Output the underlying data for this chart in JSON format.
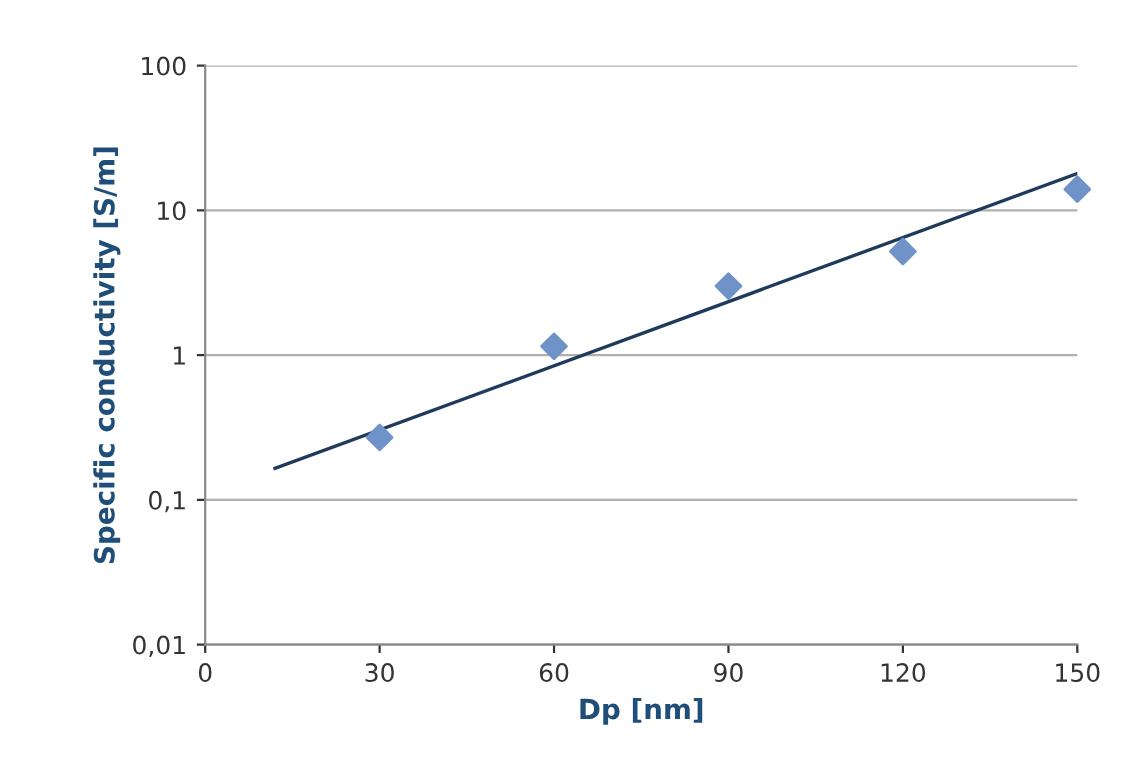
{
  "chart_data": {
    "type": "scatter",
    "xlabel": "Dp [nm]",
    "ylabel": "Specific conductivity [S/m]",
    "log": "y",
    "grid": "y",
    "xlim": [
      0,
      150
    ],
    "xticks": [
      0,
      30,
      60,
      90,
      120,
      150
    ],
    "ylim": [
      0.01,
      100
    ],
    "yticks": [
      {
        "value": 0.01,
        "label": "0,01"
      },
      {
        "value": 0.1,
        "label": "0,1"
      },
      1,
      10,
      100
    ],
    "series": [
      {
        "marker": "diamond",
        "color": "#6f93c9",
        "x": [
          30,
          60,
          90,
          120,
          150
        ],
        "values": [
          0.27,
          1.15,
          3.0,
          5.2,
          14
        ]
      },
      {
        "type": "line",
        "color": "#1f3a5a",
        "x": [
          12,
          150
        ],
        "values": [
          0.165,
          18
        ]
      }
    ]
  }
}
